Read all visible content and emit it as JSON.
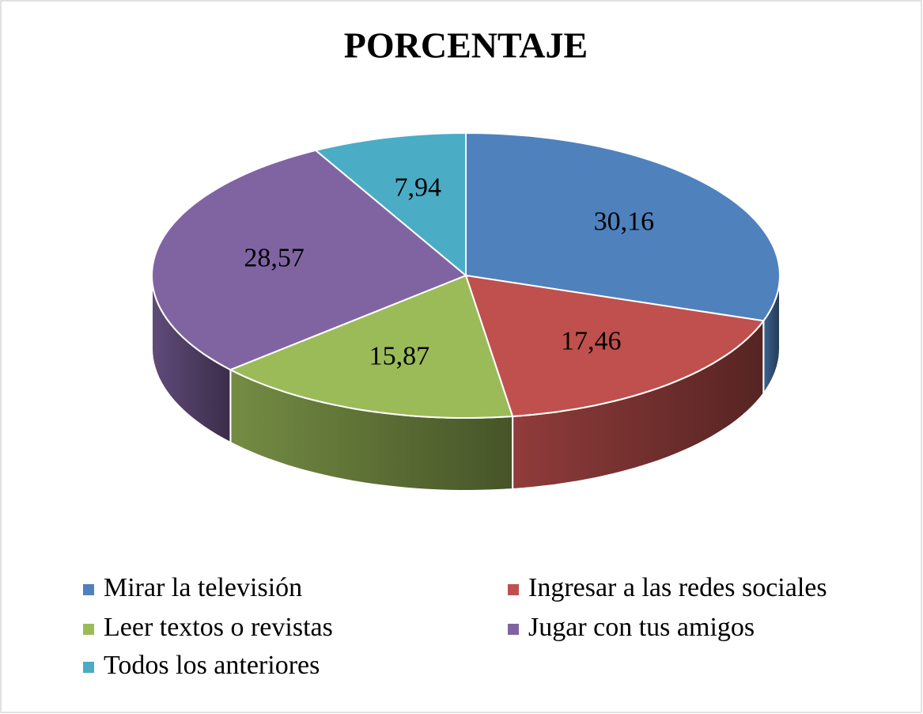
{
  "chart_data": {
    "type": "pie",
    "title": "PORCENTAJE",
    "categories": [
      "Mirar la televisión",
      "Ingresar a las redes sociales",
      "Leer textos o revistas",
      "Jugar con tus amigos",
      "Todos los anteriores"
    ],
    "values": [
      30.16,
      17.46,
      15.87,
      28.57,
      7.94
    ],
    "value_labels": [
      "30,16",
      "17,46",
      "15,87",
      "28,57",
      "7,94"
    ],
    "colors": [
      "#4f81bd",
      "#c0504d",
      "#9bbb59",
      "#8064a2",
      "#4bacc6"
    ],
    "legend": "bottom"
  }
}
